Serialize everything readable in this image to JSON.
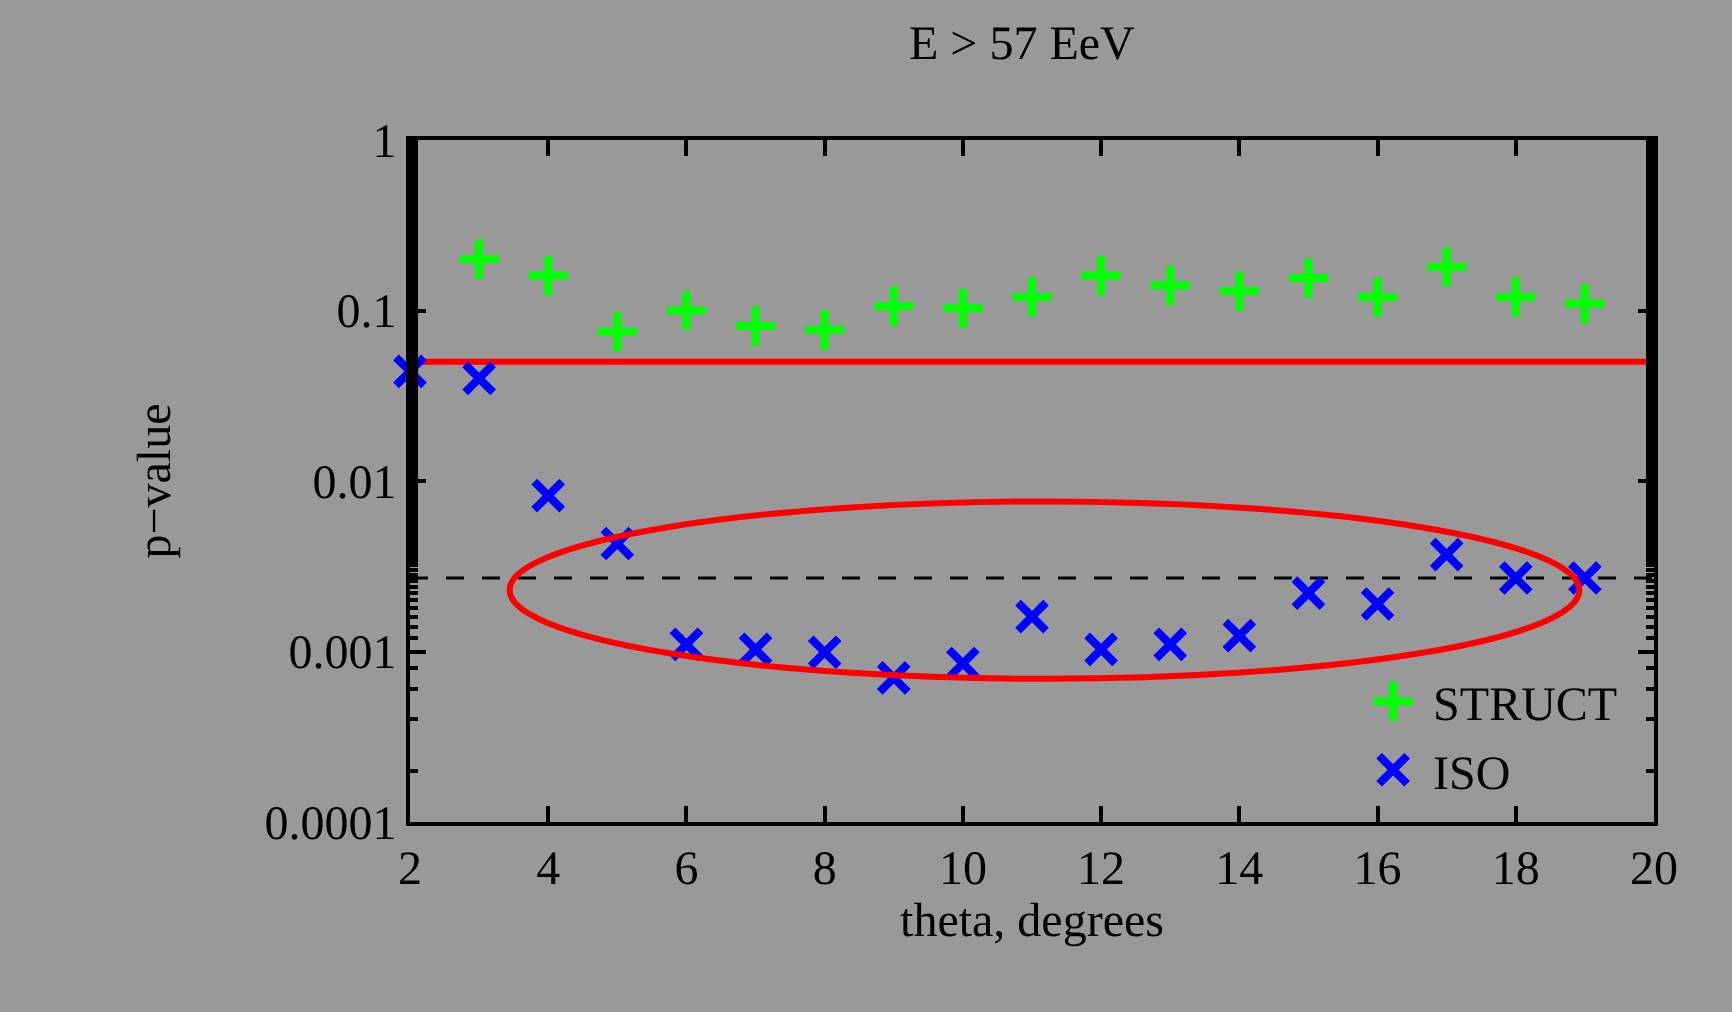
{
  "chart_data": {
    "type": "scatter",
    "title": "E > 57 EeV",
    "xlabel": "theta, degrees",
    "ylabel": "p−value",
    "x": [
      2,
      3,
      4,
      5,
      6,
      7,
      8,
      9,
      10,
      11,
      12,
      13,
      14,
      15,
      16,
      17,
      18,
      19
    ],
    "series": [
      {
        "name": "STRUCT",
        "color": "#00ff00",
        "marker": "cross",
        "values": [
          null,
          0.2,
          0.16,
          0.075,
          0.1,
          0.081,
          0.077,
          0.106,
          0.103,
          0.12,
          0.16,
          0.14,
          0.13,
          0.155,
          0.12,
          0.18,
          0.12,
          0.11
        ]
      },
      {
        "name": "ISO",
        "color": "#0000ff",
        "marker": "x",
        "values": [
          0.044,
          0.04,
          0.0082,
          0.0043,
          0.0011,
          0.00103,
          0.00099,
          0.0007,
          0.00085,
          0.0016,
          0.00103,
          0.0011,
          0.00124,
          0.0022,
          0.0019,
          0.0037,
          0.0027,
          0.0027
        ]
      }
    ],
    "log": "y",
    "xlim": [
      2,
      20
    ],
    "xticks": [
      2,
      4,
      6,
      8,
      10,
      12,
      14,
      16,
      18,
      20
    ],
    "ylim": [
      0.0001,
      1
    ],
    "yticks": [
      0.0001,
      0.001,
      0.01,
      0.1,
      1
    ],
    "ref_lines": [
      {
        "axis": "y",
        "value": 0.05,
        "color": "#ff0000",
        "line_style": "solid"
      },
      {
        "axis": "y",
        "value": 0.0027,
        "color": "#000000",
        "line_style": "dashed"
      }
    ],
    "grid": false,
    "legend": "bottom right"
  }
}
